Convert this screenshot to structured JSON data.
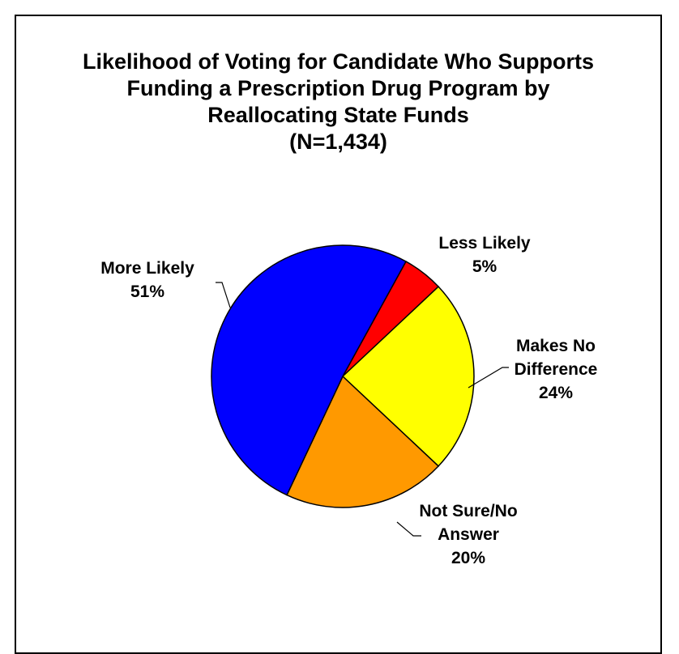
{
  "chart_data": {
    "type": "pie",
    "title": "Likelihood of Voting for Candidate Who Supports Funding a Prescription Drug Program by Reallocating State Funds",
    "subtitle": "(N=1,434)",
    "title_lines": [
      "Likelihood of Voting for Candidate Who Supports",
      "Funding a Prescription Drug Program by",
      "Reallocating State Funds",
      "(N=1,434)"
    ],
    "slices": [
      {
        "label_lines": [
          "Less Likely",
          "5%"
        ],
        "label": "Less Likely",
        "value": 5,
        "color": "#ff0000"
      },
      {
        "label_lines": [
          "Makes No",
          "Difference",
          "24%"
        ],
        "label": "Makes No Difference",
        "value": 24,
        "color": "#ffff00"
      },
      {
        "label_lines": [
          "Not Sure/No",
          "Answer",
          "20%"
        ],
        "label": "Not Sure/No Answer",
        "value": 20,
        "color": "#ff9900"
      },
      {
        "label_lines": [
          "More Likely",
          "51%"
        ],
        "label": "More Likely",
        "value": 51,
        "color": "#0000ff"
      }
    ],
    "legend": "none"
  }
}
